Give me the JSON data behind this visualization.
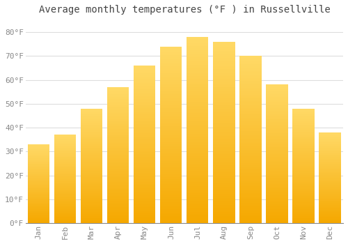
{
  "title": "Average monthly temperatures (°F ) in Russellville",
  "months": [
    "Jan",
    "Feb",
    "Mar",
    "Apr",
    "May",
    "Jun",
    "Jul",
    "Aug",
    "Sep",
    "Oct",
    "Nov",
    "Dec"
  ],
  "values": [
    33,
    37,
    48,
    57,
    66,
    74,
    78,
    76,
    70,
    58,
    48,
    38
  ],
  "bar_color_bottom": "#F5A800",
  "bar_color_top": "#FFD966",
  "bar_color_mid": "#FDB92E",
  "background_color": "#FFFFFF",
  "grid_color": "#DDDDDD",
  "ylim": [
    0,
    85
  ],
  "yticks": [
    0,
    10,
    20,
    30,
    40,
    50,
    60,
    70,
    80
  ],
  "ytick_labels": [
    "0°F",
    "10°F",
    "20°F",
    "30°F",
    "40°F",
    "50°F",
    "60°F",
    "70°F",
    "80°F"
  ],
  "title_fontsize": 10,
  "tick_fontsize": 8,
  "title_color": "#444444",
  "tick_color": "#888888",
  "font_family": "monospace",
  "bar_width": 0.82
}
